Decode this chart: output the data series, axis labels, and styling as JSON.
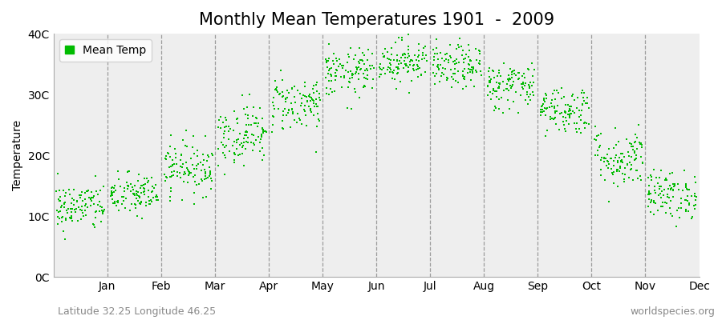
{
  "title": "Monthly Mean Temperatures 1901  -  2009",
  "ylabel": "Temperature",
  "ytick_labels": [
    "0C",
    "10C",
    "20C",
    "30C",
    "40C"
  ],
  "ytick_values": [
    0,
    10,
    20,
    30,
    40
  ],
  "ylim": [
    0,
    40
  ],
  "month_labels": [
    "Jan",
    "Feb",
    "Mar",
    "Apr",
    "May",
    "Jun",
    "Jul",
    "Aug",
    "Sep",
    "Oct",
    "Nov",
    "Dec"
  ],
  "dot_color": "#00bb00",
  "dot_size": 3,
  "background_color": "#eeeeee",
  "legend_label": "Mean Temp",
  "footer_left": "Latitude 32.25 Longitude 46.25",
  "footer_right": "worldspecies.org",
  "monthly_means": [
    11.5,
    13.5,
    18.0,
    23.5,
    28.5,
    33.5,
    35.5,
    34.5,
    31.5,
    27.5,
    19.5,
    13.5
  ],
  "monthly_stds": [
    2.0,
    1.8,
    2.2,
    2.5,
    2.3,
    2.0,
    1.8,
    1.8,
    2.0,
    2.0,
    2.5,
    2.0
  ],
  "n_years": 109,
  "seed": 42,
  "title_fontsize": 15,
  "axis_label_fontsize": 10,
  "tick_fontsize": 10,
  "footer_fontsize": 9
}
